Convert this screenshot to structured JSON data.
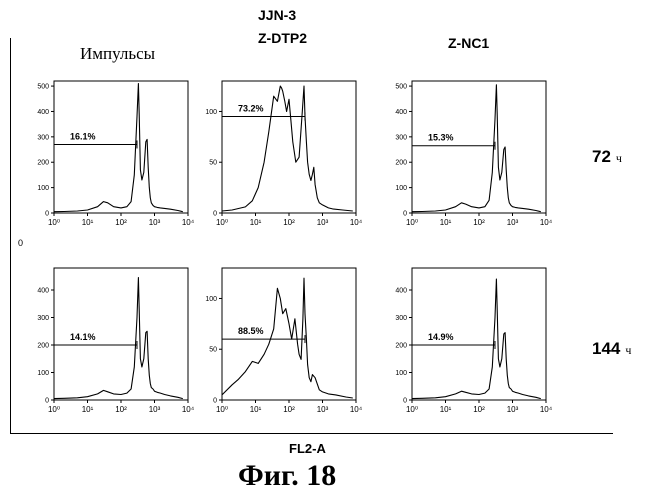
{
  "header": {
    "cell_line": "JJN-3",
    "y_axis_label": "Импульсы",
    "col_titles": [
      "Z-DTP2",
      "Z-NC1"
    ]
  },
  "rows": [
    {
      "time_value": "72",
      "time_unit": "ч"
    },
    {
      "time_value": "144",
      "time_unit": "ч"
    }
  ],
  "x_axis_label": "FL2-A",
  "figure_caption": "Фиг. 18",
  "margin_mark": "0",
  "chart_data": [
    {
      "type": "area",
      "row": 0,
      "col": 0,
      "xscale": "log",
      "xlim": [
        1,
        10000
      ],
      "ylim": [
        0,
        520
      ],
      "yticks": [
        0,
        100,
        200,
        300,
        400,
        500
      ],
      "xticks": [
        "10⁰",
        "10¹",
        "10²",
        "10³",
        "10⁴"
      ],
      "gate_label": "16.1%",
      "gate": {
        "x_from": 1,
        "x_to": 300,
        "y": 270
      },
      "x": [
        1,
        2,
        5,
        10,
        20,
        30,
        40,
        60,
        100,
        150,
        200,
        250,
        300,
        330,
        350,
        380,
        420,
        480,
        550,
        600,
        650,
        700,
        750,
        800,
        900,
        1000,
        1200,
        1500,
        2000,
        3000,
        5000,
        7000
      ],
      "y": [
        5,
        6,
        8,
        12,
        25,
        45,
        40,
        25,
        20,
        25,
        45,
        150,
        380,
        510,
        390,
        170,
        130,
        160,
        280,
        290,
        180,
        100,
        60,
        40,
        30,
        25,
        22,
        20,
        18,
        15,
        10,
        5
      ]
    },
    {
      "type": "area",
      "row": 0,
      "col": 1,
      "xscale": "log",
      "xlim": [
        1,
        10000
      ],
      "ylim": [
        0,
        130
      ],
      "yticks": [
        0,
        50,
        100
      ],
      "xticks": [
        "10⁰",
        "10¹",
        "10²",
        "10³",
        "10⁴"
      ],
      "gate_label": "73.2%",
      "gate": {
        "x_from": 1,
        "x_to": 300,
        "y": 95
      },
      "x": [
        1,
        2,
        5,
        8,
        12,
        18,
        25,
        35,
        45,
        55,
        60,
        65,
        75,
        85,
        100,
        115,
        130,
        160,
        200,
        250,
        280,
        300,
        330,
        360,
        400,
        450,
        500,
        550,
        600,
        700,
        800,
        1000,
        1500,
        2000,
        4000,
        8000
      ],
      "y": [
        2,
        3,
        6,
        12,
        25,
        50,
        80,
        115,
        110,
        125,
        123,
        120,
        110,
        100,
        112,
        90,
        70,
        50,
        55,
        100,
        125,
        95,
        70,
        50,
        38,
        32,
        38,
        45,
        28,
        15,
        10,
        8,
        5,
        4,
        3,
        2
      ]
    },
    {
      "type": "area",
      "row": 0,
      "col": 2,
      "xscale": "log",
      "xlim": [
        1,
        10000
      ],
      "ylim": [
        0,
        520
      ],
      "yticks": [
        0,
        100,
        200,
        300,
        400,
        500
      ],
      "xticks": [
        "10⁰",
        "10¹",
        "10²",
        "10³",
        "10⁴"
      ],
      "gate_label": "15.3%",
      "gate": {
        "x_from": 1,
        "x_to": 300,
        "y": 265
      },
      "x": [
        1,
        2,
        5,
        10,
        20,
        30,
        40,
        60,
        100,
        150,
        200,
        250,
        300,
        330,
        350,
        380,
        420,
        480,
        550,
        600,
        650,
        700,
        750,
        800,
        900,
        1000,
        1200,
        1500,
        2000,
        3000,
        5000,
        7000
      ],
      "y": [
        5,
        6,
        8,
        12,
        25,
        40,
        35,
        25,
        20,
        25,
        50,
        160,
        370,
        505,
        390,
        180,
        130,
        160,
        250,
        260,
        170,
        100,
        60,
        40,
        30,
        25,
        22,
        20,
        18,
        15,
        10,
        5
      ]
    },
    {
      "type": "area",
      "row": 1,
      "col": 0,
      "xscale": "log",
      "xlim": [
        1,
        10000
      ],
      "ylim": [
        0,
        480
      ],
      "yticks": [
        0,
        100,
        200,
        300,
        400
      ],
      "xticks": [
        "10⁰",
        "10¹",
        "10²",
        "10³",
        "10⁴"
      ],
      "gate_label": "14.1%",
      "gate": {
        "x_from": 1,
        "x_to": 300,
        "y": 200
      },
      "x": [
        1,
        2,
        5,
        10,
        20,
        30,
        40,
        60,
        100,
        150,
        200,
        250,
        300,
        330,
        350,
        380,
        420,
        480,
        550,
        600,
        650,
        700,
        750,
        800,
        900,
        1000,
        1200,
        1500,
        2000,
        3000,
        5000,
        7000
      ],
      "y": [
        5,
        6,
        8,
        12,
        22,
        35,
        30,
        22,
        20,
        25,
        40,
        120,
        300,
        445,
        330,
        150,
        120,
        150,
        245,
        250,
        150,
        90,
        60,
        45,
        40,
        32,
        28,
        25,
        20,
        15,
        10,
        5
      ]
    },
    {
      "type": "area",
      "row": 1,
      "col": 1,
      "xscale": "log",
      "xlim": [
        1,
        10000
      ],
      "ylim": [
        0,
        130
      ],
      "yticks": [
        0,
        50,
        100
      ],
      "xticks": [
        "10⁰",
        "10¹",
        "10²",
        "10³",
        "10⁴"
      ],
      "gate_label": "88.5%",
      "gate": {
        "x_from": 1,
        "x_to": 300,
        "y": 60
      },
      "x": [
        1,
        2,
        3,
        5,
        8,
        12,
        18,
        25,
        35,
        45,
        55,
        65,
        80,
        100,
        120,
        150,
        180,
        200,
        230,
        260,
        280,
        300,
        330,
        360,
        400,
        450,
        500,
        600,
        800,
        1000,
        1500,
        2500,
        5000,
        8000
      ],
      "y": [
        5,
        15,
        20,
        28,
        38,
        36,
        45,
        55,
        70,
        110,
        100,
        85,
        90,
        75,
        60,
        80,
        55,
        45,
        40,
        80,
        120,
        85,
        60,
        35,
        22,
        18,
        25,
        22,
        10,
        8,
        6,
        5,
        3,
        2
      ]
    },
    {
      "type": "area",
      "row": 1,
      "col": 2,
      "xscale": "log",
      "xlim": [
        1,
        10000
      ],
      "ylim": [
        0,
        480
      ],
      "yticks": [
        0,
        100,
        200,
        300,
        400
      ],
      "xticks": [
        "10⁰",
        "10¹",
        "10²",
        "10³",
        "10⁴"
      ],
      "gate_label": "14.9%",
      "gate": {
        "x_from": 1,
        "x_to": 300,
        "y": 200
      },
      "x": [
        1,
        2,
        5,
        10,
        20,
        30,
        40,
        60,
        100,
        150,
        200,
        250,
        300,
        330,
        350,
        380,
        420,
        480,
        550,
        600,
        650,
        700,
        750,
        800,
        900,
        1000,
        1200,
        1500,
        2000,
        3000,
        5000,
        7000
      ],
      "y": [
        5,
        6,
        8,
        12,
        22,
        32,
        28,
        22,
        20,
        25,
        40,
        120,
        300,
        440,
        330,
        150,
        120,
        150,
        240,
        245,
        150,
        90,
        60,
        45,
        40,
        32,
        28,
        25,
        20,
        15,
        10,
        5
      ]
    }
  ]
}
